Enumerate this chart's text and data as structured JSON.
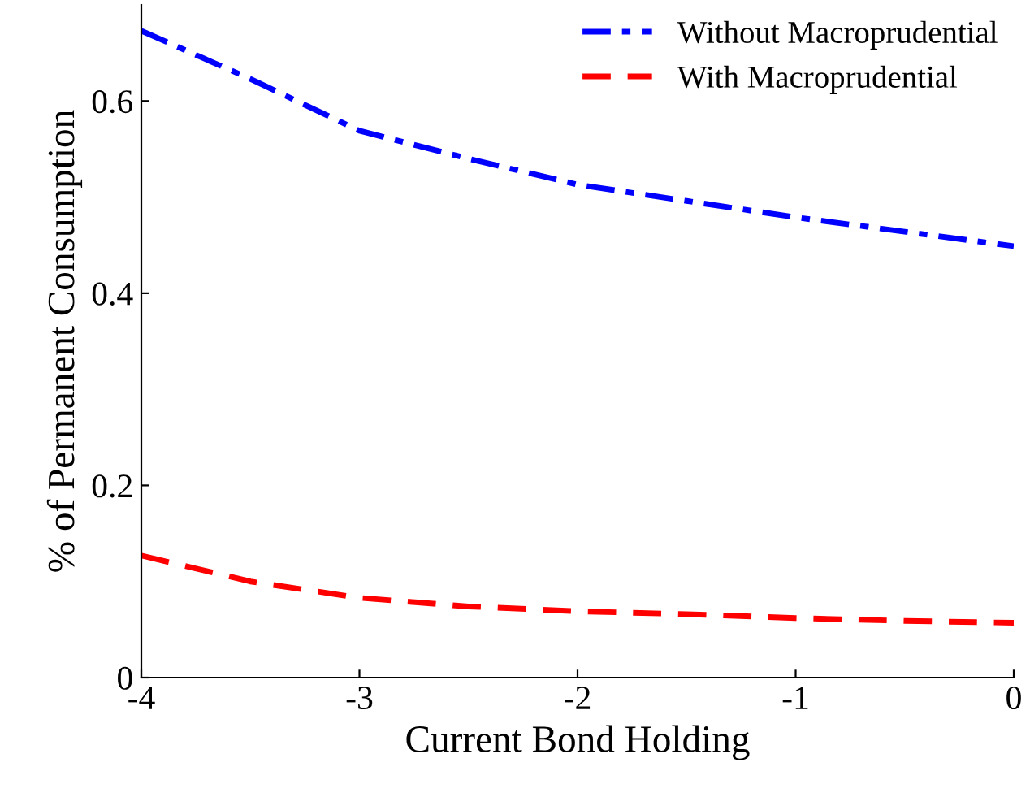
{
  "chart_data": {
    "type": "line",
    "xlabel": "Current Bond Holding",
    "ylabel": "% of Permanent Consumption",
    "x": [
      -4,
      -3.5,
      -3,
      -2.5,
      -2,
      -1.5,
      -1,
      -0.5,
      0
    ],
    "series": [
      {
        "name": "Without Macroprudential",
        "color": "#0000ff",
        "line_style": "dashdot",
        "values": [
          0.673,
          0.623,
          0.569,
          0.54,
          0.513,
          0.496,
          0.479,
          0.464,
          0.449
        ]
      },
      {
        "name": "With Macroprudential",
        "color": "#ff0000",
        "line_style": "dashed",
        "values": [
          0.127,
          0.1,
          0.083,
          0.074,
          0.069,
          0.066,
          0.062,
          0.059,
          0.057
        ]
      }
    ],
    "xlim": [
      -4,
      0
    ],
    "ylim": [
      0,
      0.7
    ],
    "xticks": [
      -4,
      -3,
      -2,
      -1,
      0
    ],
    "yticks": [
      0,
      0.2,
      0.4,
      0.6
    ],
    "grid": false,
    "legend": "top right"
  }
}
